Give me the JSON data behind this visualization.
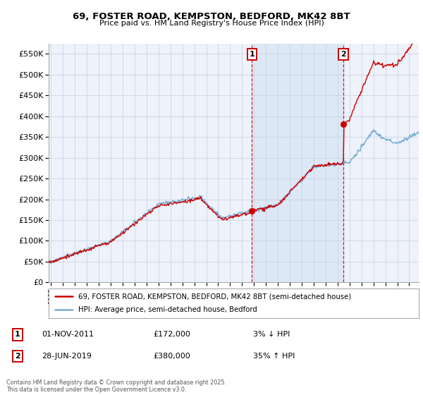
{
  "title": "69, FOSTER ROAD, KEMPSTON, BEDFORD, MK42 8BT",
  "subtitle": "Price paid vs. HM Land Registry's House Price Index (HPI)",
  "legend_entry1": "69, FOSTER ROAD, KEMPSTON, BEDFORD, MK42 8BT (semi-detached house)",
  "legend_entry2": "HPI: Average price, semi-detached house, Bedford",
  "transaction1_date": "01-NOV-2011",
  "transaction1_price": "£172,000",
  "transaction1_info": "3% ↓ HPI",
  "transaction1_year": 2011.83,
  "transaction1_value": 172000,
  "transaction2_date": "28-JUN-2019",
  "transaction2_price": "£380,000",
  "transaction2_info": "35% ↑ HPI",
  "transaction2_year": 2019.49,
  "transaction2_value": 380000,
  "copyright_text": "Contains HM Land Registry data © Crown copyright and database right 2025.\nThis data is licensed under the Open Government Licence v3.0.",
  "hpi_color": "#7bafd4",
  "price_color": "#cc0000",
  "background_color": "#ffffff",
  "plot_bg_color": "#eef2fa",
  "shaded_region_color": "#dce8f5",
  "grid_color": "#c8cfe0",
  "ylim": [
    0,
    575000
  ],
  "xlim_start": 1994.8,
  "xlim_end": 2025.8
}
